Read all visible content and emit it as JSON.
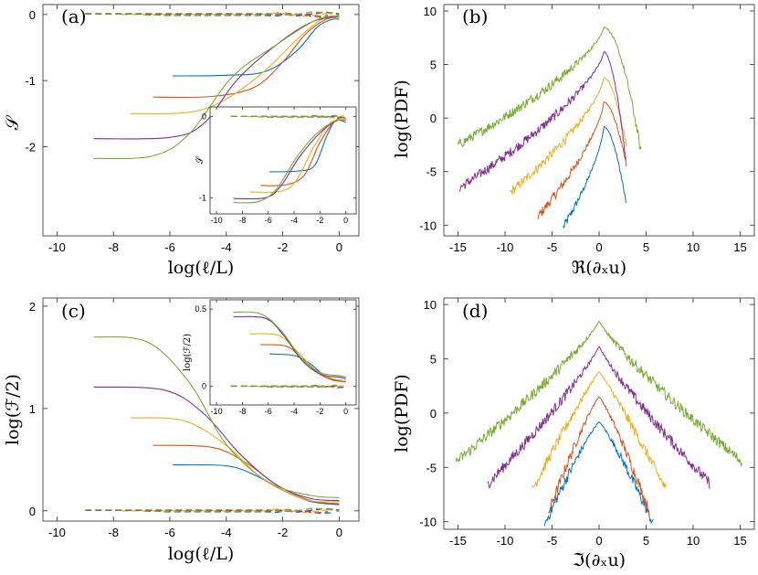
{
  "colors": {
    "blue": "#0072BD",
    "red": "#D95319",
    "yellow": "#EDB120",
    "purple": "#7E2F8E",
    "green": "#77AC30"
  },
  "chart_data": [
    {
      "id": "a",
      "type": "line",
      "panel_label": "(a)",
      "xlabel": "log(ℓ/L)",
      "ylabel": "𝒮",
      "xlim": [
        -10.5,
        0.7
      ],
      "ylim": [
        -3.35,
        0.15
      ],
      "xticks": [
        -10,
        -8,
        -6,
        -4,
        -2,
        0
      ],
      "xtick_labels": [
        "-10",
        "-8",
        "-6",
        "-4",
        "-2",
        "0"
      ],
      "yticks": [
        -2,
        -1,
        0
      ],
      "ytick_labels": [
        "-2",
        "-1",
        "0"
      ],
      "series": [
        {
          "name": "blue",
          "color": "blue",
          "x": [
            -5.9,
            -4,
            -2.6,
            -1.5,
            -0.8,
            -0.3,
            0
          ],
          "y": [
            -0.93,
            -0.92,
            -0.86,
            -0.55,
            -0.2,
            -0.08,
            -0.07
          ]
        },
        {
          "name": "red",
          "color": "red",
          "x": [
            -6.6,
            -4.5,
            -3,
            -2,
            -1.2,
            -0.5,
            0
          ],
          "y": [
            -1.25,
            -1.24,
            -1.1,
            -0.72,
            -0.3,
            -0.08,
            -0.04
          ]
        },
        {
          "name": "yellow",
          "color": "yellow",
          "x": [
            -7.4,
            -5.3,
            -4,
            -2.6,
            -1.5,
            -0.6,
            0
          ],
          "y": [
            -1.5,
            -1.48,
            -1.28,
            -0.84,
            -0.38,
            -0.07,
            -0.03
          ]
        },
        {
          "name": "purple",
          "color": "purple",
          "x": [
            -8.7,
            -6,
            -4.8,
            -3.6,
            -2.2,
            -1,
            0
          ],
          "y": [
            -1.88,
            -1.86,
            -1.65,
            -0.98,
            -0.45,
            -0.12,
            -0.02
          ]
        },
        {
          "name": "green",
          "color": "green",
          "x": [
            -8.7,
            -6.6,
            -5.3,
            -3.8,
            -2.2,
            -0.8,
            0
          ],
          "y": [
            -2.18,
            -2.14,
            -1.8,
            -0.95,
            -0.45,
            -0.08,
            -0.02
          ]
        }
      ],
      "dashed_series_y": 0.0,
      "inset": {
        "xlabel": "",
        "ylabel": "𝒮",
        "xlim": [
          -10.5,
          0.8
        ],
        "ylim": [
          -1.2,
          0.12
        ],
        "xticks": [
          -10,
          -8,
          -6,
          -4,
          -2,
          0
        ],
        "xtick_labels": [
          "-10",
          "-8",
          "-6",
          "-4",
          "-2",
          "0"
        ],
        "yticks": [
          -1,
          0
        ],
        "ytick_labels": [
          "-1",
          "0"
        ],
        "series": [
          {
            "name": "blue",
            "color": "blue",
            "x": [
              -5.9,
              -3.6,
              -2.4,
              -1.5,
              -0.8,
              0
            ],
            "y": [
              -0.68,
              -0.67,
              -0.6,
              -0.25,
              -0.05,
              -0.07
            ]
          },
          {
            "name": "red",
            "color": "red",
            "x": [
              -6.6,
              -4.6,
              -3.2,
              -2.1,
              -1,
              0
            ],
            "y": [
              -0.85,
              -0.84,
              -0.72,
              -0.35,
              -0.08,
              -0.04
            ]
          },
          {
            "name": "yellow",
            "color": "yellow",
            "x": [
              -7.4,
              -5,
              -3.8,
              -2.5,
              -1.2,
              0
            ],
            "y": [
              -0.93,
              -0.92,
              -0.78,
              -0.38,
              -0.08,
              -0.03
            ]
          },
          {
            "name": "purple",
            "color": "purple",
            "x": [
              -8.7,
              -6.2,
              -5,
              -3.6,
              -2,
              -0.5,
              0
            ],
            "y": [
              -1.01,
              -1.0,
              -0.85,
              -0.5,
              -0.2,
              -0.02,
              -0.02
            ]
          },
          {
            "name": "green",
            "color": "green",
            "x": [
              -8.7,
              -6.8,
              -5.4,
              -3.8,
              -2.2,
              -0.6,
              0
            ],
            "y": [
              -1.06,
              -1.05,
              -0.9,
              -0.5,
              -0.2,
              -0.03,
              -0.02
            ]
          }
        ]
      }
    },
    {
      "id": "b",
      "type": "line",
      "panel_label": "(b)",
      "xlabel": "ℜ(∂ₓu)",
      "ylabel": "log(PDF)",
      "xlim": [
        -16.5,
        16.5
      ],
      "ylim": [
        -11,
        10.6
      ],
      "xticks": [
        -15,
        -10,
        -5,
        0,
        5,
        10,
        15
      ],
      "xtick_labels": [
        "-15",
        "-10",
        "-5",
        "0",
        "5",
        "10",
        "15"
      ],
      "yticks": [
        -10,
        -5,
        0,
        5,
        10
      ],
      "ytick_labels": [
        "-10",
        "-5",
        "0",
        "5",
        "10"
      ],
      "series": [
        {
          "name": "blue",
          "color": "blue",
          "peak": -0.8,
          "peak_x": 0.5,
          "left_x": -3.8,
          "left_y": -10.2,
          "right_x": 2.9,
          "right_y": -8.2
        },
        {
          "name": "red",
          "color": "red",
          "peak": 1.5,
          "peak_x": 0.5,
          "left_x": -6.5,
          "left_y": -9.2,
          "right_x": 2.9,
          "right_y": -4.5
        },
        {
          "name": "yellow",
          "color": "yellow",
          "peak": 3.8,
          "peak_x": 0.5,
          "left_x": -9.5,
          "left_y": -7.0,
          "right_x": 2.9,
          "right_y": -2.6
        },
        {
          "name": "purple",
          "color": "purple",
          "peak": 6.2,
          "peak_x": 0.5,
          "left_x": -14.8,
          "left_y": -6.5,
          "right_x": 2.9,
          "right_y": -4.5
        },
        {
          "name": "green",
          "color": "green",
          "peak": 8.5,
          "peak_x": 0.5,
          "left_x": -15,
          "left_y": -2.5,
          "right_x": 4.5,
          "right_y": -3.5
        }
      ]
    },
    {
      "id": "c",
      "type": "line",
      "panel_label": "(c)",
      "xlabel": "log(ℓ/L)",
      "ylabel": "log(ℱ/2)",
      "xlim": [
        -10.5,
        0.7
      ],
      "ylim": [
        -0.1,
        2.08
      ],
      "xticks": [
        -10,
        -8,
        -6,
        -4,
        -2,
        0
      ],
      "xtick_labels": [
        "-10",
        "-8",
        "-6",
        "-4",
        "-2",
        "0"
      ],
      "yticks": [
        0,
        1,
        2
      ],
      "ytick_labels": [
        "0",
        "1",
        "2"
      ],
      "series": [
        {
          "name": "blue",
          "color": "blue",
          "x": [
            -5.9,
            -4,
            -3,
            -2,
            -1,
            0
          ],
          "y": [
            0.45,
            0.44,
            0.35,
            0.2,
            0.09,
            0.06
          ]
        },
        {
          "name": "red",
          "color": "red",
          "x": [
            -6.6,
            -4.5,
            -3.3,
            -2.2,
            -1,
            0
          ],
          "y": [
            0.64,
            0.62,
            0.47,
            0.25,
            0.1,
            0.07
          ]
        },
        {
          "name": "yellow",
          "color": "yellow",
          "x": [
            -7.4,
            -5.5,
            -4,
            -2.7,
            -1.2,
            0
          ],
          "y": [
            0.91,
            0.88,
            0.64,
            0.31,
            0.11,
            0.09
          ]
        },
        {
          "name": "purple",
          "color": "purple",
          "x": [
            -8.7,
            -6.2,
            -4.8,
            -3.5,
            -2.2,
            -1,
            0
          ],
          "y": [
            1.21,
            1.18,
            0.95,
            0.55,
            0.25,
            0.12,
            0.1
          ]
        },
        {
          "name": "green",
          "color": "green",
          "x": [
            -8.7,
            -6.8,
            -5.3,
            -4,
            -2.5,
            -1,
            0
          ],
          "y": [
            1.7,
            1.65,
            1.25,
            0.65,
            0.28,
            0.15,
            0.13
          ]
        }
      ],
      "dashed_series_y": 0.0,
      "inset": {
        "xlabel": "",
        "ylabel": "log(ℱ/2)",
        "xlim": [
          -10.5,
          0.8
        ],
        "ylim": [
          -0.12,
          0.56
        ],
        "xticks": [
          -10,
          -8,
          -6,
          -4,
          -2,
          0
        ],
        "xtick_labels": [
          "-10",
          "-8",
          "-6",
          "-4",
          "-2",
          "0"
        ],
        "yticks": [
          0,
          0.5
        ],
        "ytick_labels": [
          "0",
          "0.5"
        ],
        "series": [
          {
            "name": "blue",
            "color": "blue",
            "x": [
              -5.9,
              -4,
              -2.8,
              -1.8,
              -0.8,
              0
            ],
            "y": [
              0.21,
              0.2,
              0.15,
              0.08,
              0.04,
              0.03
            ]
          },
          {
            "name": "red",
            "color": "red",
            "x": [
              -6.6,
              -4.6,
              -3.4,
              -2.2,
              -1,
              0
            ],
            "y": [
              0.27,
              0.26,
              0.18,
              0.09,
              0.04,
              0.03
            ]
          },
          {
            "name": "yellow",
            "color": "yellow",
            "x": [
              -7.4,
              -5.2,
              -3.8,
              -2.4,
              -1,
              0
            ],
            "y": [
              0.34,
              0.33,
              0.23,
              0.11,
              0.05,
              0.04
            ]
          },
          {
            "name": "purple",
            "color": "purple",
            "x": [
              -8.7,
              -6.2,
              -4.8,
              -3.4,
              -2,
              -0.5,
              0
            ],
            "y": [
              0.45,
              0.44,
              0.33,
              0.17,
              0.08,
              0.06,
              0.05
            ]
          },
          {
            "name": "green",
            "color": "green",
            "x": [
              -8.7,
              -6.6,
              -5,
              -3.5,
              -2,
              -0.5,
              0
            ],
            "y": [
              0.48,
              0.47,
              0.36,
              0.19,
              0.09,
              0.07,
              0.06
            ]
          }
        ]
      }
    },
    {
      "id": "d",
      "type": "line",
      "panel_label": "(d)",
      "xlabel": "ℑ(∂ₓu)",
      "ylabel": "log(PDF)",
      "xlim": [
        -16.5,
        16.5
      ],
      "ylim": [
        -10.7,
        10.6
      ],
      "xticks": [
        -15,
        -10,
        -5,
        0,
        5,
        10,
        15
      ],
      "xtick_labels": [
        "-15",
        "-10",
        "-5",
        "0",
        "5",
        "10",
        "15"
      ],
      "yticks": [
        -10,
        -5,
        0,
        5,
        10
      ],
      "ytick_labels": [
        "-10",
        "-5",
        "0",
        "5",
        "10"
      ],
      "series": [
        {
          "name": "blue",
          "color": "blue",
          "peak": -0.8,
          "halfwidth": 5.8,
          "floor": -10.3
        },
        {
          "name": "red",
          "color": "red",
          "peak": 1.5,
          "halfwidth": 5.4,
          "floor": -9.2
        },
        {
          "name": "yellow",
          "color": "yellow",
          "peak": 3.8,
          "halfwidth": 7.2,
          "floor": -7.2
        },
        {
          "name": "purple",
          "color": "purple",
          "peak": 6.2,
          "halfwidth": 11.8,
          "floor": -6.5
        },
        {
          "name": "green",
          "color": "green",
          "peak": 8.5,
          "halfwidth": 15.2,
          "floor": -4.5
        }
      ]
    }
  ]
}
